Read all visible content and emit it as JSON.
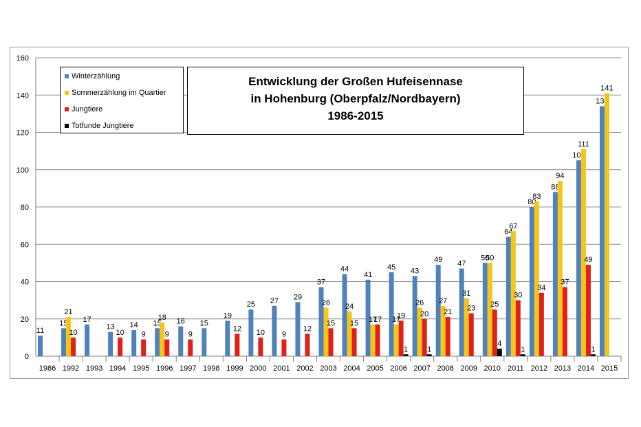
{
  "chart_data": {
    "type": "bar",
    "title_lines": [
      "Entwicklung  der Großen Hufeisennase",
      "in Hohenburg (Oberpfalz/Nordbayern)",
      "1986-2015"
    ],
    "ylim": [
      0,
      160
    ],
    "yticks": [
      0,
      20,
      40,
      60,
      80,
      100,
      120,
      140,
      160
    ],
    "grid": true,
    "legend_position": "top-left",
    "categories": [
      "1986",
      "1992",
      "1993",
      "1994",
      "1995",
      "1996",
      "1997",
      "1998",
      "1999",
      "2000",
      "2001",
      "2002",
      "2003",
      "2004",
      "2005",
      "2006",
      "2007",
      "2008",
      "2009",
      "2010",
      "2011",
      "2012",
      "2013",
      "2014",
      "2015"
    ],
    "series": [
      {
        "name": "Winterzählung",
        "color": "#4f81bd",
        "values": [
          11,
          15,
          17,
          13,
          14,
          15,
          16,
          15,
          19,
          25,
          27,
          29,
          37,
          44,
          41,
          45,
          43,
          49,
          47,
          50,
          64,
          80,
          88,
          105,
          134
        ]
      },
      {
        "name": "Sommerzählung im Quartier",
        "color": "#f5c518",
        "values": [
          null,
          21,
          null,
          null,
          null,
          18,
          null,
          null,
          null,
          null,
          null,
          null,
          26,
          24,
          17,
          17,
          26,
          27,
          31,
          50,
          67,
          83,
          94,
          111,
          141
        ]
      },
      {
        "name": "Jungtiere",
        "color": "#e0201b",
        "values": [
          null,
          10,
          null,
          10,
          9,
          9,
          9,
          null,
          12,
          10,
          9,
          12,
          15,
          15,
          17,
          19,
          20,
          21,
          23,
          25,
          30,
          34,
          37,
          49,
          null
        ]
      },
      {
        "name": "Totfunde Jungtiere",
        "color": "#000000",
        "values": [
          null,
          null,
          null,
          null,
          null,
          null,
          null,
          null,
          null,
          null,
          null,
          null,
          null,
          null,
          null,
          1,
          1,
          null,
          null,
          4,
          1,
          null,
          null,
          1,
          null
        ]
      }
    ]
  }
}
